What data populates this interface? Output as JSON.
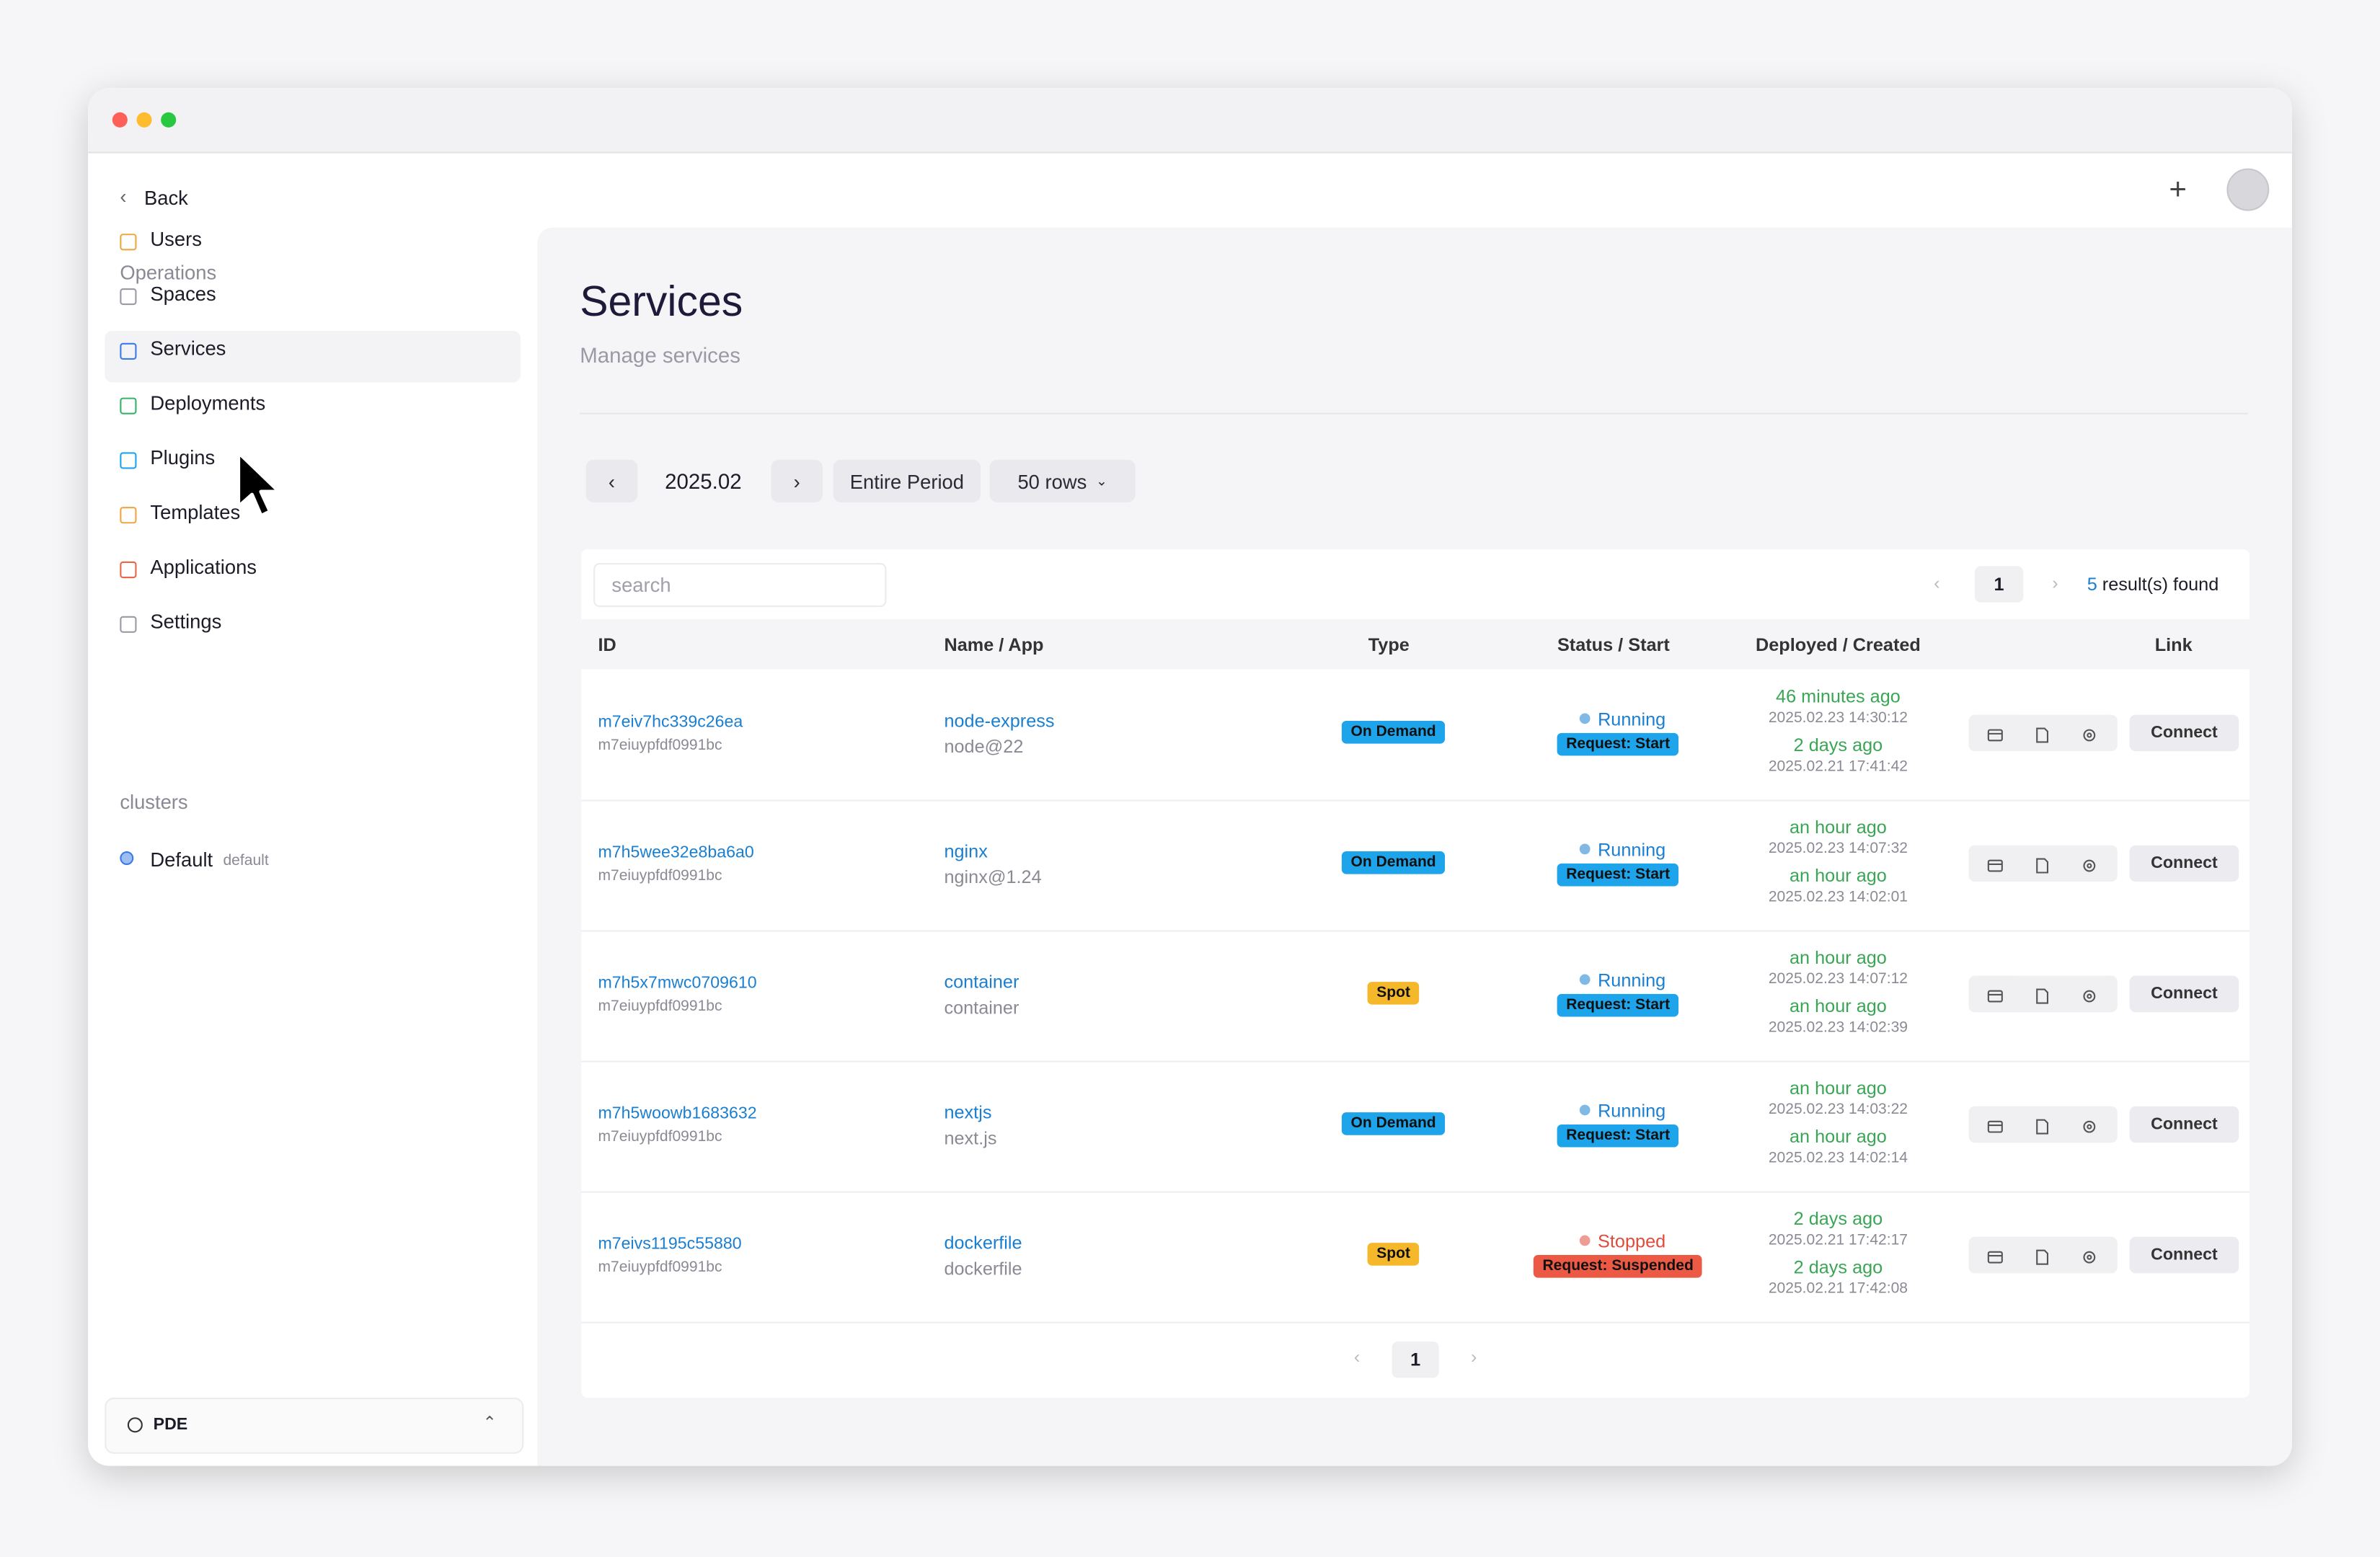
{
  "sidebar": {
    "back": "Back",
    "section": "Operations",
    "nav": [
      "Users",
      "Spaces",
      "Services",
      "Deployments",
      "Plugins",
      "Templates",
      "Applications",
      "Settings"
    ],
    "clusters_title": "clusters",
    "cluster": {
      "name": "Default",
      "tag": "default"
    },
    "footer": "PDE"
  },
  "page": {
    "title": "Services",
    "subtitle": "Manage services",
    "period": "2025.02",
    "range": "Entire Period",
    "rows_option": "50 rows",
    "search": "search",
    "page": 1,
    "results_count": 5,
    "results_label": "result(s) found",
    "bottom_page": 1
  },
  "table": {
    "columns": [
      "ID",
      "Name / App",
      "Type",
      "Status / Start",
      "Deployed / Created",
      "Link"
    ],
    "rows": [
      {
        "id": "m7eiv7hc339c26ea",
        "owner": "m7eiuypfdf0991bc",
        "name": "node-express",
        "app": "node@22",
        "type": "On Demand",
        "type_color": "#1ea4ea",
        "status": "Running",
        "status_color": "#1a7fd1",
        "request": "Request: Start",
        "request_color": "#1ea4ea",
        "deployed_ago": "46 minutes ago",
        "deployed_at": "2025.02.23 14:30:12",
        "created_ago": "2 days ago",
        "created_at": "2025.02.21 17:41:42",
        "link": "Connect"
      },
      {
        "id": "m7h5wee32e8ba6a0",
        "owner": "m7eiuypfdf0991bc",
        "name": "nginx",
        "app": "nginx@1.24",
        "type": "On Demand",
        "type_color": "#1ea4ea",
        "status": "Running",
        "status_color": "#1a7fd1",
        "request": "Request: Start",
        "request_color": "#1ea4ea",
        "deployed_ago": "an hour ago",
        "deployed_at": "2025.02.23 14:07:32",
        "created_ago": "an hour ago",
        "created_at": "2025.02.23 14:02:01",
        "link": "Connect"
      },
      {
        "id": "m7h5x7mwc0709610",
        "owner": "m7eiuypfdf0991bc",
        "name": "container",
        "app": "container",
        "type": "Spot",
        "type_color": "#f6b82b",
        "status": "Running",
        "status_color": "#1a7fd1",
        "request": "Request: Start",
        "request_color": "#1ea4ea",
        "deployed_ago": "an hour ago",
        "deployed_at": "2025.02.23 14:07:12",
        "created_ago": "an hour ago",
        "created_at": "2025.02.23 14:02:39",
        "link": "Connect"
      },
      {
        "id": "m7h5woowb1683632",
        "owner": "m7eiuypfdf0991bc",
        "name": "nextjs",
        "app": "next.js",
        "type": "On Demand",
        "type_color": "#1ea4ea",
        "status": "Running",
        "status_color": "#1a7fd1",
        "request": "Request: Start",
        "request_color": "#1ea4ea",
        "deployed_ago": "an hour ago",
        "deployed_at": "2025.02.23 14:03:22",
        "created_ago": "an hour ago",
        "created_at": "2025.02.23 14:02:14",
        "link": "Connect"
      },
      {
        "id": "m7eivs1195c55880",
        "owner": "m7eiuypfdf0991bc",
        "name": "dockerfile",
        "app": "dockerfile",
        "type": "Spot",
        "type_color": "#f6b82b",
        "status": "Stopped",
        "status_color": "#e04b3c",
        "request": "Request: Suspended",
        "request_color": "#ec5a45",
        "deployed_ago": "2 days ago",
        "deployed_at": "2025.02.21 17:42:17",
        "created_ago": "2 days ago",
        "created_at": "2025.02.21 17:42:08",
        "link": "Connect"
      }
    ]
  }
}
